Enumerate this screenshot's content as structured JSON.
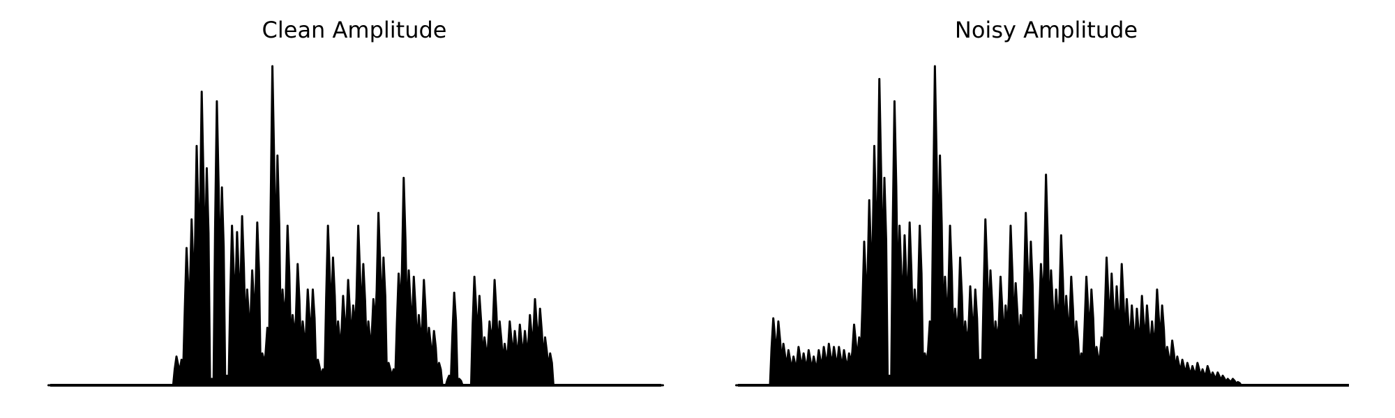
{
  "chart_data": [
    {
      "type": "area",
      "title": "Clean Amplitude",
      "xlabel": "",
      "ylabel": "",
      "axes": "off",
      "grid": false,
      "color": "#000000",
      "ylim": [
        0,
        1
      ],
      "n_samples": 121,
      "peaks": [
        [
          0,
          0.0
        ],
        [
          24,
          0.0
        ],
        [
          25,
          0.09
        ],
        [
          26,
          0.08
        ],
        [
          27,
          0.43
        ],
        [
          28,
          0.52
        ],
        [
          29,
          0.75
        ],
        [
          30,
          0.92
        ],
        [
          31,
          0.68
        ],
        [
          32,
          0.02
        ],
        [
          33,
          0.89
        ],
        [
          34,
          0.62
        ],
        [
          35,
          0.03
        ],
        [
          36,
          0.5
        ],
        [
          37,
          0.48
        ],
        [
          38,
          0.53
        ],
        [
          39,
          0.3
        ],
        [
          40,
          0.36
        ],
        [
          41,
          0.51
        ],
        [
          42,
          0.1
        ],
        [
          43,
          0.18
        ],
        [
          44,
          1.0
        ],
        [
          45,
          0.72
        ],
        [
          46,
          0.3
        ],
        [
          47,
          0.5
        ],
        [
          48,
          0.22
        ],
        [
          49,
          0.38
        ],
        [
          50,
          0.2
        ],
        [
          51,
          0.3
        ],
        [
          52,
          0.3
        ],
        [
          53,
          0.08
        ],
        [
          54,
          0.05
        ],
        [
          55,
          0.5
        ],
        [
          56,
          0.4
        ],
        [
          57,
          0.2
        ],
        [
          58,
          0.28
        ],
        [
          59,
          0.33
        ],
        [
          60,
          0.25
        ],
        [
          61,
          0.5
        ],
        [
          62,
          0.38
        ],
        [
          63,
          0.2
        ],
        [
          64,
          0.27
        ],
        [
          65,
          0.54
        ],
        [
          66,
          0.4
        ],
        [
          67,
          0.07
        ],
        [
          68,
          0.05
        ],
        [
          69,
          0.35
        ],
        [
          70,
          0.65
        ],
        [
          71,
          0.36
        ],
        [
          72,
          0.34
        ],
        [
          73,
          0.22
        ],
        [
          74,
          0.33
        ],
        [
          75,
          0.18
        ],
        [
          76,
          0.17
        ],
        [
          77,
          0.07
        ],
        [
          78,
          0.0
        ],
        [
          79,
          0.03
        ],
        [
          80,
          0.29
        ],
        [
          81,
          0.02
        ],
        [
          82,
          0.0
        ],
        [
          83,
          0.0
        ],
        [
          84,
          0.34
        ],
        [
          85,
          0.28
        ],
        [
          86,
          0.15
        ],
        [
          87,
          0.2
        ],
        [
          88,
          0.33
        ],
        [
          89,
          0.2
        ],
        [
          90,
          0.13
        ],
        [
          91,
          0.2
        ],
        [
          92,
          0.17
        ],
        [
          93,
          0.19
        ],
        [
          94,
          0.17
        ],
        [
          95,
          0.22
        ],
        [
          96,
          0.27
        ],
        [
          97,
          0.24
        ],
        [
          98,
          0.15
        ],
        [
          99,
          0.1
        ],
        [
          100,
          0.0
        ],
        [
          121,
          0.0
        ]
      ]
    },
    {
      "type": "area",
      "title": "Noisy Amplitude",
      "xlabel": "",
      "ylabel": "",
      "axes": "off",
      "grid": false,
      "color": "#000000",
      "ylim": [
        0,
        1
      ],
      "n_samples": 121,
      "peaks": [
        [
          0,
          0.0
        ],
        [
          6,
          0.0
        ],
        [
          7,
          0.21
        ],
        [
          8,
          0.2
        ],
        [
          9,
          0.13
        ],
        [
          10,
          0.11
        ],
        [
          11,
          0.09
        ],
        [
          12,
          0.12
        ],
        [
          13,
          0.1
        ],
        [
          14,
          0.11
        ],
        [
          15,
          0.09
        ],
        [
          16,
          0.11
        ],
        [
          17,
          0.12
        ],
        [
          18,
          0.13
        ],
        [
          19,
          0.12
        ],
        [
          20,
          0.12
        ],
        [
          21,
          0.11
        ],
        [
          22,
          0.1
        ],
        [
          23,
          0.19
        ],
        [
          24,
          0.15
        ],
        [
          25,
          0.45
        ],
        [
          26,
          0.58
        ],
        [
          27,
          0.75
        ],
        [
          28,
          0.96
        ],
        [
          29,
          0.65
        ],
        [
          30,
          0.03
        ],
        [
          31,
          0.89
        ],
        [
          32,
          0.5
        ],
        [
          33,
          0.47
        ],
        [
          34,
          0.51
        ],
        [
          35,
          0.3
        ],
        [
          36,
          0.5
        ],
        [
          37,
          0.1
        ],
        [
          38,
          0.2
        ],
        [
          39,
          1.0
        ],
        [
          40,
          0.72
        ],
        [
          41,
          0.34
        ],
        [
          42,
          0.5
        ],
        [
          43,
          0.24
        ],
        [
          44,
          0.4
        ],
        [
          45,
          0.2
        ],
        [
          46,
          0.31
        ],
        [
          47,
          0.3
        ],
        [
          48,
          0.08
        ],
        [
          49,
          0.52
        ],
        [
          50,
          0.36
        ],
        [
          51,
          0.2
        ],
        [
          52,
          0.34
        ],
        [
          53,
          0.25
        ],
        [
          54,
          0.5
        ],
        [
          55,
          0.32
        ],
        [
          56,
          0.22
        ],
        [
          57,
          0.54
        ],
        [
          58,
          0.45
        ],
        [
          59,
          0.08
        ],
        [
          60,
          0.38
        ],
        [
          61,
          0.66
        ],
        [
          62,
          0.36
        ],
        [
          63,
          0.3
        ],
        [
          64,
          0.47
        ],
        [
          65,
          0.28
        ],
        [
          66,
          0.34
        ],
        [
          67,
          0.2
        ],
        [
          68,
          0.1
        ],
        [
          69,
          0.34
        ],
        [
          70,
          0.3
        ],
        [
          71,
          0.12
        ],
        [
          72,
          0.15
        ],
        [
          73,
          0.4
        ],
        [
          74,
          0.35
        ],
        [
          75,
          0.31
        ],
        [
          76,
          0.38
        ],
        [
          77,
          0.27
        ],
        [
          78,
          0.25
        ],
        [
          79,
          0.24
        ],
        [
          80,
          0.28
        ],
        [
          81,
          0.25
        ],
        [
          82,
          0.2
        ],
        [
          83,
          0.3
        ],
        [
          84,
          0.25
        ],
        [
          85,
          0.12
        ],
        [
          86,
          0.14
        ],
        [
          87,
          0.09
        ],
        [
          88,
          0.08
        ],
        [
          89,
          0.07
        ],
        [
          90,
          0.06
        ],
        [
          91,
          0.07
        ],
        [
          92,
          0.05
        ],
        [
          93,
          0.06
        ],
        [
          94,
          0.04
        ],
        [
          95,
          0.04
        ],
        [
          96,
          0.03
        ],
        [
          97,
          0.02
        ],
        [
          98,
          0.02
        ],
        [
          99,
          0.01
        ],
        [
          100,
          0.0
        ]
      ]
    }
  ]
}
